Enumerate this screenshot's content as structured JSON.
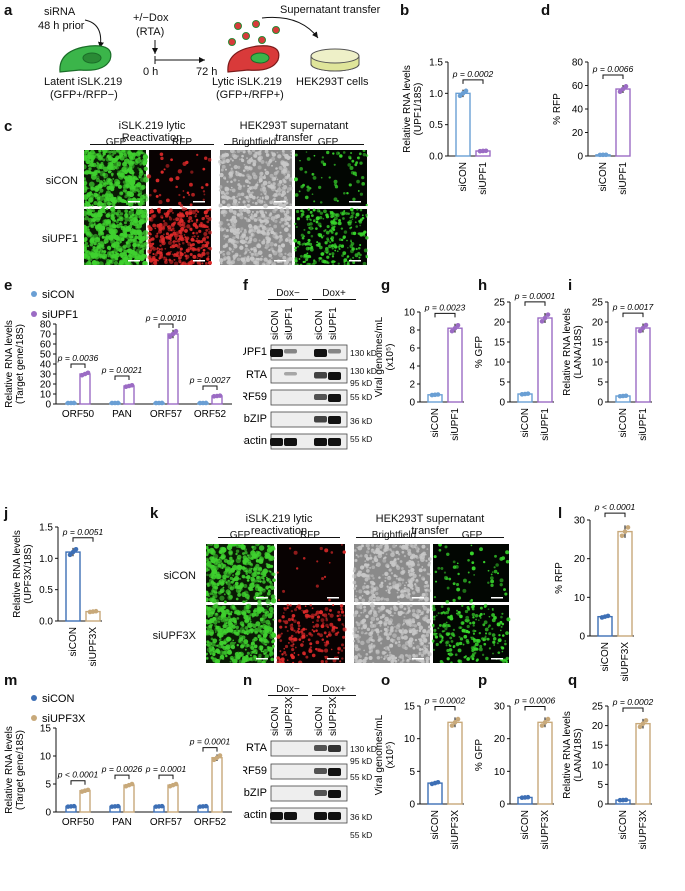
{
  "panels": {
    "a": "a",
    "b": "b",
    "c": "c",
    "d": "d",
    "e": "e",
    "f": "f",
    "g": "g",
    "h": "h",
    "i": "i",
    "j": "j",
    "k": "k",
    "l": "l",
    "m": "m",
    "n": "n",
    "o": "o",
    "p": "p",
    "q": "q"
  },
  "schematic": {
    "sirna": "siRNA",
    "hours_prior": "48 h prior",
    "dox": "+/−Dox",
    "rta": "(RTA)",
    "t0": "0 h",
    "t72": "72 h",
    "latent": "Latent iSLK.219",
    "latent_sub": "(GFP+/RFP−)",
    "lytic": "Lytic iSLK.219",
    "lytic_sub": "(GFP+/RFP+)",
    "supernatant": "Supernatant transfer",
    "hek": "HEK293T cells"
  },
  "micrographs_c": {
    "left_title": "iSLK.219 lytic Reactivation",
    "right_title": "HEK293T supernatant transfer",
    "cols": [
      "GFP",
      "RFP",
      "Brightfield",
      "GFP"
    ],
    "rows": [
      "siCON",
      "siUPF1"
    ]
  },
  "micrographs_k": {
    "left_title": "iSLK.219 lytic reactivation",
    "right_title": "HEK293T supernatant transfer",
    "cols": [
      "GFP",
      "RFP",
      "Brightfield",
      "GFP"
    ],
    "rows": [
      "siCON",
      "siUPF3X"
    ]
  },
  "blot_f": {
    "groups": [
      "Dox−",
      "Dox+"
    ],
    "lanes": [
      "siCON",
      "siUPF1",
      "siCON",
      "siUPF1"
    ],
    "rows": [
      "UPF1",
      "RTA",
      "ORF59",
      "bZIP",
      "β-actin"
    ],
    "markers": [
      "130 kD",
      "130 kD",
      "95 kD",
      "55 kD",
      "36 kD",
      "55 kD"
    ]
  },
  "blot_n": {
    "groups": [
      "Dox−",
      "Dox+"
    ],
    "lanes": [
      "siCON",
      "siUPF3X",
      "siCON",
      "siUPF3X"
    ],
    "rows": [
      "RTA",
      "ORF59",
      "bZIP",
      "β-actin"
    ],
    "markers": [
      "130 kD",
      "95 kD",
      "55 kD",
      "36 kD",
      "55 kD"
    ]
  },
  "colors": {
    "siCON_blue": "#6a9fd4",
    "siUPF1_purple": "#9b6bc4",
    "siCON_dark": "#3d6fb5",
    "siUPF3X_tan": "#c8a97a"
  },
  "chart_data": [
    {
      "id": "b",
      "type": "bar",
      "categories": [
        "siCON",
        "siUPF1"
      ],
      "values": [
        1.0,
        0.08
      ],
      "ylabel": "Relative RNA levels (UPF1/18S)",
      "ylim": [
        0,
        1.5
      ],
      "yticks": [
        "0.0",
        "0.5",
        "1.0",
        "1.5"
      ],
      "pvalue": "p = 0.0002"
    },
    {
      "id": "d",
      "type": "bar",
      "categories": [
        "siCON",
        "siUPF1"
      ],
      "values": [
        1,
        57
      ],
      "ylabel": "% RFP",
      "ylim": [
        0,
        80
      ],
      "yticks": [
        "0",
        "20",
        "40",
        "60",
        "80"
      ],
      "pvalue": "p = 0.0066"
    },
    {
      "id": "e",
      "type": "bar",
      "categories": [
        "ORF50",
        "PAN",
        "ORF57",
        "ORF52"
      ],
      "series": [
        {
          "name": "siCON",
          "values": [
            1,
            1,
            1,
            1
          ]
        },
        {
          "name": "siUPF1",
          "values": [
            30,
            18,
            70,
            8
          ]
        }
      ],
      "ylabel": "Relative RNA levels (Target gene/18S)",
      "ylim": [
        0,
        80
      ],
      "yticks": [
        "0",
        "10",
        "20",
        "30",
        "40",
        "50",
        "60",
        "70",
        "80"
      ],
      "pvalues": [
        "p = 0.0036",
        "p = 0.0021",
        "p = 0.0010",
        "p = 0.0027"
      ]
    },
    {
      "id": "g",
      "type": "bar",
      "categories": [
        "siCON",
        "siUPF1"
      ],
      "values": [
        0.8,
        8.2
      ],
      "ylabel": "Viral genomes/mL (x10⁵)",
      "ylim": [
        0,
        10
      ],
      "yticks": [
        "0",
        "2",
        "4",
        "6",
        "8",
        "10"
      ],
      "pvalue": "p = 0.0023"
    },
    {
      "id": "h",
      "type": "bar",
      "categories": [
        "siCON",
        "siUPF1"
      ],
      "values": [
        2,
        21
      ],
      "ylabel": "% GFP",
      "ylim": [
        0,
        25
      ],
      "yticks": [
        "0",
        "5",
        "10",
        "15",
        "20",
        "25"
      ],
      "pvalue": "p = 0.0001"
    },
    {
      "id": "i",
      "type": "bar",
      "categories": [
        "siCON",
        "siUPF1"
      ],
      "values": [
        1.5,
        18.5
      ],
      "ylabel": "Relative RNA levels (LANA/18S)",
      "ylim": [
        0,
        25
      ],
      "yticks": [
        "0",
        "5",
        "10",
        "15",
        "20",
        "25"
      ],
      "pvalue": "p = 0.0017"
    },
    {
      "id": "j",
      "type": "bar",
      "categories": [
        "siCON",
        "siUPF3X"
      ],
      "values": [
        1.1,
        0.15
      ],
      "ylabel": "Relative RNA levels (UPF3X/18S)",
      "ylim": [
        0,
        1.5
      ],
      "yticks": [
        "0.0",
        "0.5",
        "1.0",
        "1.5"
      ],
      "pvalue": "p = 0.0051"
    },
    {
      "id": "l",
      "type": "bar",
      "categories": [
        "siCON",
        "siUPF3X"
      ],
      "values": [
        5,
        27
      ],
      "ylabel": "% RFP",
      "ylim": [
        0,
        30
      ],
      "yticks": [
        "0",
        "10",
        "20",
        "30"
      ],
      "pvalue": "p < 0.0001"
    },
    {
      "id": "m",
      "type": "bar",
      "categories": [
        "ORF50",
        "PAN",
        "ORF57",
        "ORF52"
      ],
      "series": [
        {
          "name": "siCON",
          "values": [
            1,
            1,
            1,
            1
          ]
        },
        {
          "name": "siUPF3X",
          "values": [
            3.8,
            4.8,
            4.8,
            9.7
          ]
        }
      ],
      "ylabel": "Relative RNA levels (Target gene/18S)",
      "ylim": [
        0,
        15
      ],
      "yticks": [
        "0",
        "5",
        "10",
        "15"
      ],
      "pvalues": [
        "p < 0.0001",
        "p = 0.0026",
        "p = 0.0001",
        "p = 0.0001"
      ]
    },
    {
      "id": "o",
      "type": "bar",
      "categories": [
        "siCON",
        "siUPF3X"
      ],
      "values": [
        3.2,
        12.5
      ],
      "ylabel": "Viral genomes/mL (x10⁵)",
      "ylim": [
        0,
        15
      ],
      "yticks": [
        "0",
        "5",
        "10",
        "15"
      ],
      "pvalue": "p = 0.0002"
    },
    {
      "id": "p",
      "type": "bar",
      "categories": [
        "siCON",
        "siUPF3X"
      ],
      "values": [
        2,
        25
      ],
      "ylabel": "% GFP",
      "ylim": [
        0,
        30
      ],
      "yticks": [
        "0",
        "10",
        "20",
        "30"
      ],
      "pvalue": "p = 0.0006"
    },
    {
      "id": "q",
      "type": "bar",
      "categories": [
        "siCON",
        "siUPF3X"
      ],
      "values": [
        1,
        20.5
      ],
      "ylabel": "Relative RNA levels (LANA/18S)",
      "ylim": [
        0,
        25
      ],
      "yticks": [
        "0",
        "5",
        "10",
        "15",
        "20",
        "25"
      ],
      "pvalue": "p = 0.0002"
    }
  ]
}
